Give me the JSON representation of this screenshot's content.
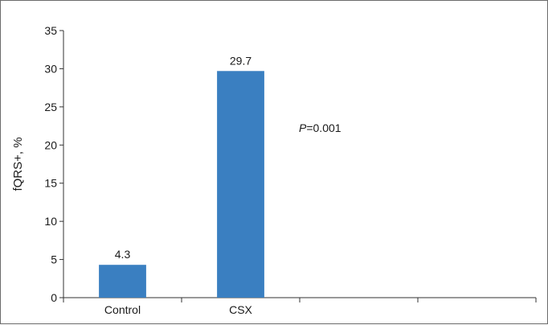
{
  "chart_data": {
    "type": "bar",
    "categories": [
      "Control",
      "CSX",
      "",
      ""
    ],
    "values": [
      4.3,
      29.7,
      null,
      null
    ],
    "data_labels": [
      "4.3",
      "29.7",
      "",
      ""
    ],
    "ylabel": "fQRS+, %",
    "xlabel": "",
    "ylim": [
      0,
      35
    ],
    "yticks": [
      0,
      5,
      10,
      15,
      20,
      25,
      30,
      35
    ],
    "grid": false,
    "legend": "none",
    "bar_color": "#3a7fc1",
    "annotation": {
      "prefix": "P",
      "text": "=0.001"
    }
  }
}
